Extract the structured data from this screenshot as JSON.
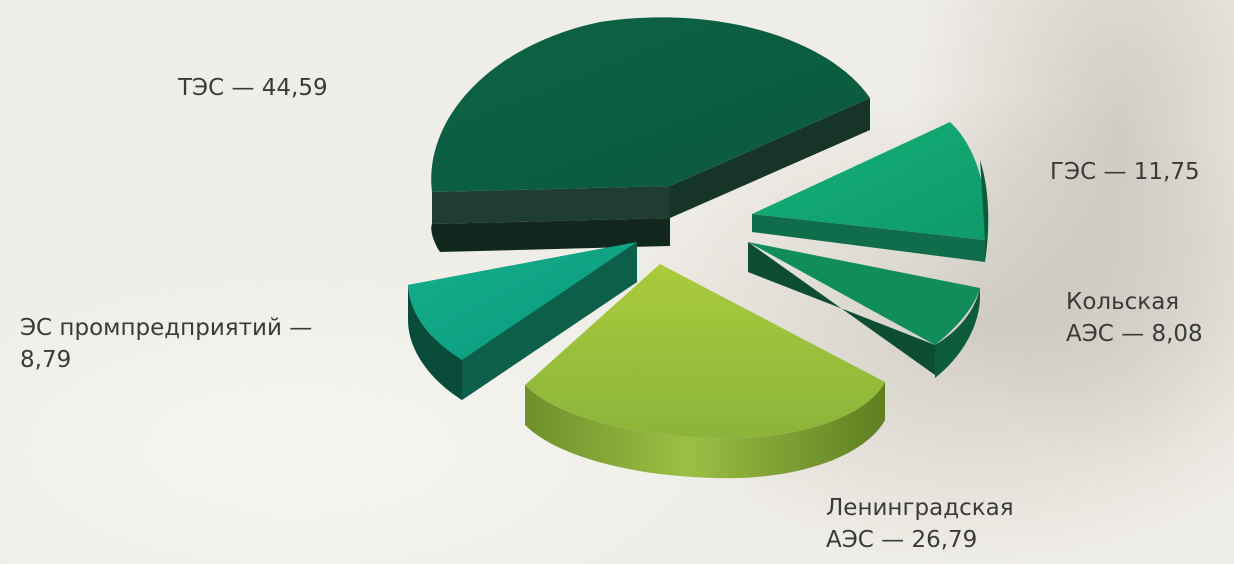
{
  "chart_data": {
    "type": "pie",
    "title": "",
    "style": "3d-exploded",
    "slices": [
      {
        "label": "ТЭС",
        "value": 44.59,
        "display": "ТЭС — 44,59",
        "color": "#0c5f43"
      },
      {
        "label": "ГЭС",
        "value": 11.75,
        "display": "ГЭС — 11,75",
        "color": "#12a574"
      },
      {
        "label": "Кольская АЭС",
        "value": 8.08,
        "display_line1": "Кольская",
        "display_line2": "АЭС — 8,08",
        "color": "#118c5b"
      },
      {
        "label": "Ленинградская АЭС",
        "value": 26.79,
        "display_line1": "Ленинградская",
        "display_line2": "АЭС — 26,79",
        "color": "#9cc23f"
      },
      {
        "label": "ЭС промпредприятий",
        "value": 8.79,
        "display_line1": "ЭС промпредприятий —",
        "display_line2": "8,79",
        "color": "#0ea282"
      }
    ]
  }
}
